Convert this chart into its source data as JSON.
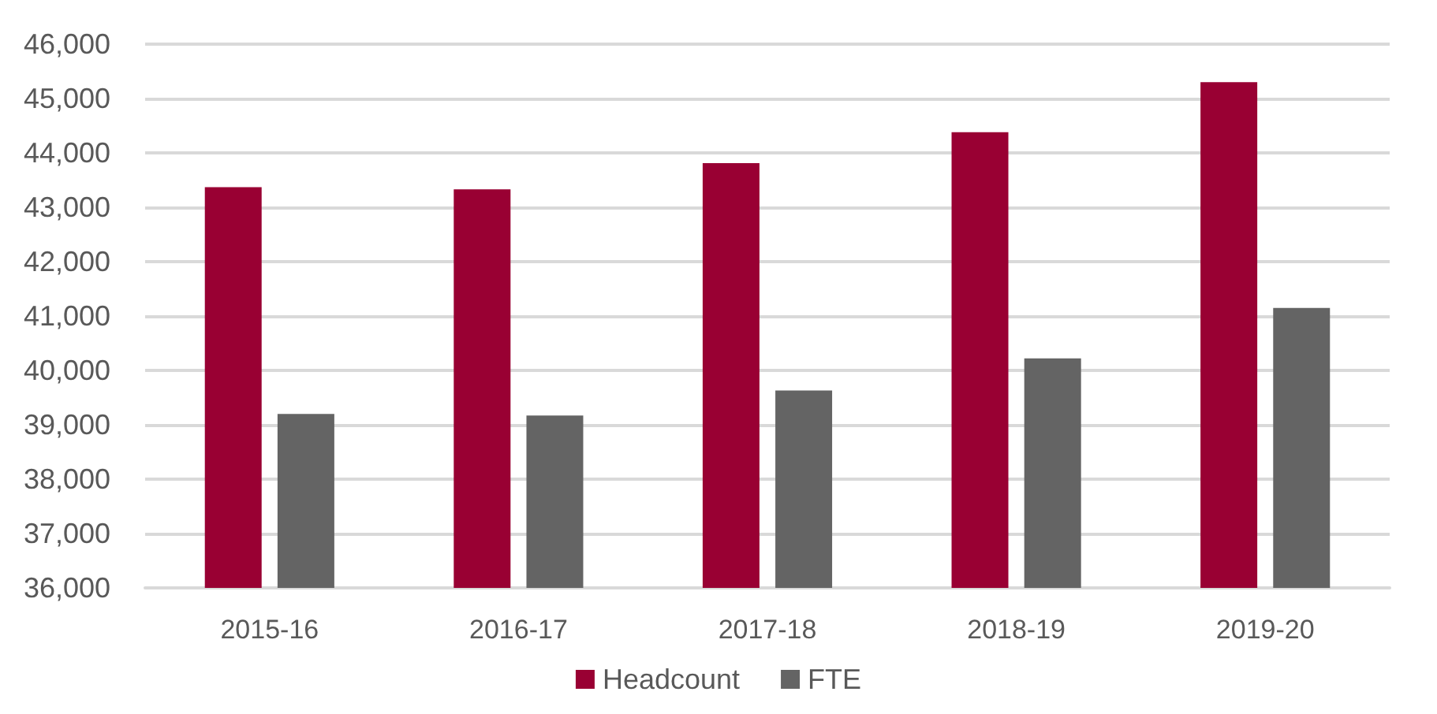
{
  "chart_data": {
    "type": "bar",
    "categories": [
      "2015-16",
      "2016-17",
      "2017-18",
      "2018-19",
      "2019-20"
    ],
    "series": [
      {
        "name": "Headcount",
        "color": "#990033",
        "values": [
          43370,
          43330,
          43810,
          44380,
          45300
        ]
      },
      {
        "name": "FTE",
        "color": "#646464",
        "values": [
          39200,
          39170,
          39630,
          40220,
          41150
        ]
      }
    ],
    "ylim": [
      36000,
      46000
    ],
    "yticks": [
      {
        "value": 36000,
        "label": "36,000"
      },
      {
        "value": 37000,
        "label": "37,000"
      },
      {
        "value": 38000,
        "label": "38,000"
      },
      {
        "value": 39000,
        "label": "39,000"
      },
      {
        "value": 40000,
        "label": "40,000"
      },
      {
        "value": 41000,
        "label": "41,000"
      },
      {
        "value": 42000,
        "label": "42,000"
      },
      {
        "value": 43000,
        "label": "43,000"
      },
      {
        "value": 44000,
        "label": "44,000"
      },
      {
        "value": 45000,
        "label": "45,000"
      },
      {
        "value": 46000,
        "label": "46,000"
      }
    ],
    "grid": "y",
    "legend": "bottom"
  }
}
